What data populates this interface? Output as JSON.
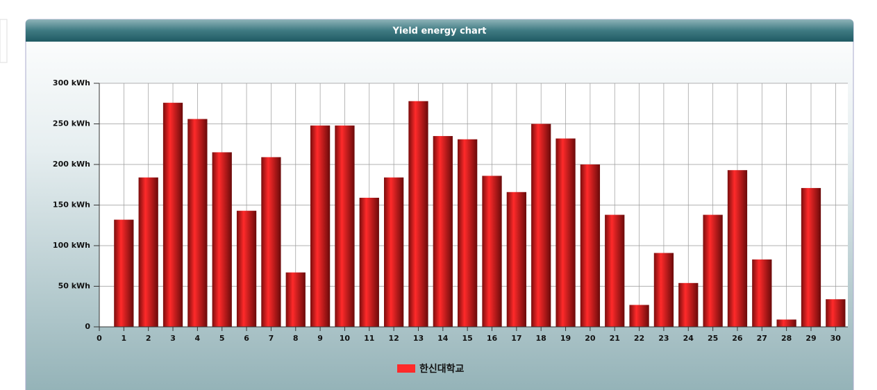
{
  "chart_data": {
    "type": "bar",
    "title": "Yield energy chart",
    "x": [
      1,
      2,
      3,
      4,
      5,
      6,
      7,
      8,
      9,
      10,
      11,
      12,
      13,
      14,
      15,
      16,
      17,
      18,
      19,
      20,
      21,
      22,
      23,
      24,
      25,
      26,
      27,
      28,
      29,
      30
    ],
    "series": [
      {
        "name": "한신대학교",
        "color": "#ff2a2a",
        "values": [
          132,
          184,
          276,
          256,
          215,
          143,
          209,
          67,
          248,
          248,
          159,
          184,
          278,
          235,
          231,
          186,
          166,
          250,
          232,
          200,
          138,
          27,
          91,
          54,
          138,
          193,
          83,
          9,
          171,
          34
        ]
      }
    ],
    "xlim": [
      0,
      30.5
    ],
    "xticks": [
      0,
      1,
      2,
      3,
      4,
      5,
      6,
      7,
      8,
      9,
      10,
      11,
      12,
      13,
      14,
      15,
      16,
      17,
      18,
      19,
      20,
      21,
      22,
      23,
      24,
      25,
      26,
      27,
      28,
      29,
      30
    ],
    "ylim": [
      0,
      300
    ],
    "yticks": [
      0,
      {
        "value": 50,
        "label": "50 kWh"
      },
      {
        "value": 100,
        "label": "100 kWh"
      },
      {
        "value": 150,
        "label": "150 kWh"
      },
      {
        "value": 200,
        "label": "200 kWh"
      },
      {
        "value": 250,
        "label": "250 kWh"
      },
      {
        "value": 300,
        "label": "300 kWh"
      }
    ],
    "grid": true
  }
}
